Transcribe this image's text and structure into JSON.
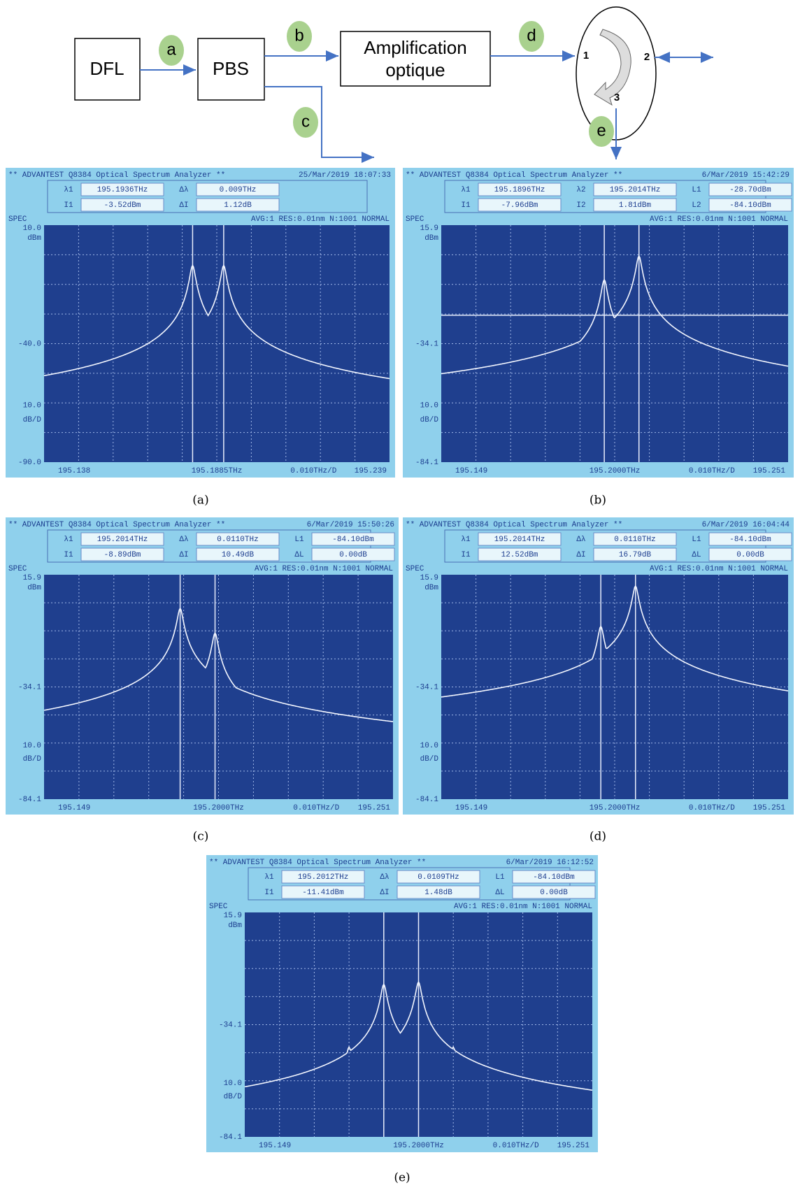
{
  "diagram": {
    "nodes": [
      "DFL",
      "PBS",
      "Amplification optique"
    ],
    "ports": [
      "1",
      "2",
      "3"
    ],
    "points": [
      "a",
      "b",
      "c",
      "d",
      "e"
    ]
  },
  "panels": [
    {
      "caption": "(a)",
      "header": "** ADVANTEST Q8384 Optical Spectrum Analyzer **",
      "date": "25/Mar/2019 18:07:33",
      "readouts": [
        [
          [
            "λ1",
            "195.1936THz"
          ],
          [
            "Δλ",
            "0.009THz"
          ]
        ],
        [
          [
            "I1",
            "-3.52dBm"
          ],
          [
            "ΔI",
            "1.12dB"
          ]
        ]
      ],
      "status": [
        "SPEC",
        "AVG:1  RES:0.01nm N:1001  NORMAL"
      ],
      "y_labels": [
        "10.0",
        "dBm",
        "-40.0",
        "10.0",
        "dB/D",
        "-90.0"
      ],
      "x_labels": [
        "195.138",
        "195.1885THz",
        "0.010THz/D",
        "195.239"
      ]
    },
    {
      "caption": "(b)",
      "header": "** ADVANTEST Q8384 Optical Spectrum Analyzer **",
      "date": "6/Mar/2019 15:42:29",
      "readouts": [
        [
          [
            "λ1",
            "195.1896THz"
          ],
          [
            "λ2",
            "195.2014THz"
          ],
          [
            "L1",
            "-28.70dBm"
          ]
        ],
        [
          [
            "I1",
            "-7.96dBm"
          ],
          [
            "I2",
            "1.81dBm"
          ],
          [
            "L2",
            "-84.10dBm"
          ]
        ]
      ],
      "status": [
        "SPEC",
        "AVG:1  RES:0.01nm N:1001  NORMAL"
      ],
      "y_labels": [
        "15.9",
        "dBm",
        "-34.1",
        "10.0",
        "dB/D",
        "-84.1"
      ],
      "x_labels": [
        "195.149",
        "195.2000THz",
        "0.010THz/D",
        "195.251"
      ]
    },
    {
      "caption": "(c)",
      "header": "** ADVANTEST Q8384 Optical Spectrum Analyzer **",
      "date": "6/Mar/2019 15:50:26",
      "readouts": [
        [
          [
            "λ1",
            "195.2014THz"
          ],
          [
            "Δλ",
            "0.0110THz"
          ],
          [
            "L1",
            "-84.10dBm"
          ]
        ],
        [
          [
            "I1",
            "-8.89dBm"
          ],
          [
            "ΔI",
            "10.49dB"
          ],
          [
            "ΔL",
            "0.00dB"
          ]
        ]
      ],
      "status": [
        "SPEC",
        "AVG:1  RES:0.01nm N:1001  NORMAL"
      ],
      "y_labels": [
        "15.9",
        "dBm",
        "-34.1",
        "10.0",
        "dB/D",
        "-84.1"
      ],
      "x_labels": [
        "195.149",
        "195.2000THz",
        "0.010THz/D",
        "195.251"
      ]
    },
    {
      "caption": "(d)",
      "header": "** ADVANTEST Q8384 Optical Spectrum Analyzer **",
      "date": "6/Mar/2019 16:04:44",
      "readouts": [
        [
          [
            "λ1",
            "195.2014THz"
          ],
          [
            "Δλ",
            "0.0110THz"
          ],
          [
            "L1",
            "-84.10dBm"
          ]
        ],
        [
          [
            "I1",
            "12.52dBm"
          ],
          [
            "ΔI",
            "16.79dB"
          ],
          [
            "ΔL",
            "0.00dB"
          ]
        ]
      ],
      "status": [
        "SPEC",
        "AVG:1  RES:0.01nm N:1001  NORMAL"
      ],
      "y_labels": [
        "15.9",
        "dBm",
        "-34.1",
        "10.0",
        "dB/D",
        "-84.1"
      ],
      "x_labels": [
        "195.149",
        "195.2000THz",
        "0.010THz/D",
        "195.251"
      ]
    },
    {
      "caption": "(e)",
      "header": "** ADVANTEST Q8384 Optical Spectrum Analyzer **",
      "date": "6/Mar/2019 16:12:52",
      "readouts": [
        [
          [
            "λ1",
            "195.2012THz"
          ],
          [
            "Δλ",
            "0.0109THz"
          ],
          [
            "L1",
            "-84.10dBm"
          ]
        ],
        [
          [
            "I1",
            "-11.41dBm"
          ],
          [
            "ΔI",
            "1.48dB"
          ],
          [
            "ΔL",
            "0.00dB"
          ]
        ]
      ],
      "status": [
        "SPEC",
        "AVG:1  RES:0.01nm N:1001  NORMAL"
      ],
      "y_labels": [
        "15.9",
        "dBm",
        "-34.1",
        "10.0",
        "dB/D",
        "-84.1"
      ],
      "x_labels": [
        "195.149",
        "195.2000THz",
        "0.010THz/D",
        "195.251"
      ]
    }
  ]
}
